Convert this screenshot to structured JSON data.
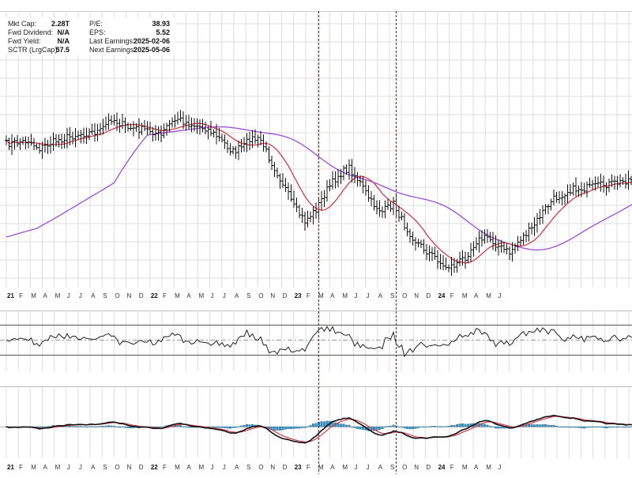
{
  "info_panel": {
    "left": [
      {
        "label": "Mkt Cap:",
        "value": "2.28T"
      },
      {
        "label": "Fwd Dividend:",
        "value": "N/A"
      },
      {
        "label": "Fwd Yield:",
        "value": "N/A"
      },
      {
        "label": "SCTR (LrgCap):",
        "value": "57.5"
      }
    ],
    "right": [
      {
        "label": "P/E:",
        "value": "38.93"
      },
      {
        "label": "EPS:",
        "value": "5.52"
      },
      {
        "label": "Last Earnings:",
        "value": "2025-02-06"
      },
      {
        "label": "Next Earnings:",
        "value": "2025-05-06"
      }
    ]
  },
  "chart_data": {
    "type": "line",
    "panels": [
      "price",
      "momentum",
      "macd"
    ],
    "x_axis": {
      "month_ticks": [
        "21",
        "F",
        "M",
        "A",
        "M",
        "J",
        "J",
        "A",
        "S",
        "O",
        "N",
        "D",
        "22",
        "F",
        "M",
        "A",
        "M",
        "J",
        "J",
        "A",
        "S",
        "O",
        "N",
        "D",
        "23",
        "F",
        "M",
        "A",
        "M",
        "J",
        "J",
        "A",
        "S",
        "O",
        "N",
        "D",
        "24",
        "F",
        "M",
        "A",
        "M",
        "J"
      ],
      "bold_ticks": [
        "21",
        "22",
        "23",
        "24"
      ]
    },
    "colors": {
      "price_bars": "#111111",
      "ma_short": "#d23c4b",
      "ma_long": "#9a4fd6",
      "momentum_line": "#222222",
      "momentum_fill": "#3d7a3f",
      "macd_line": "#111111",
      "signal_line": "#d23c4b",
      "histogram": "#3a93c3",
      "event_marker": "#c0141c",
      "grid": "#dddddd"
    },
    "event_marker_weeks": [
      195,
      223
    ]
  }
}
